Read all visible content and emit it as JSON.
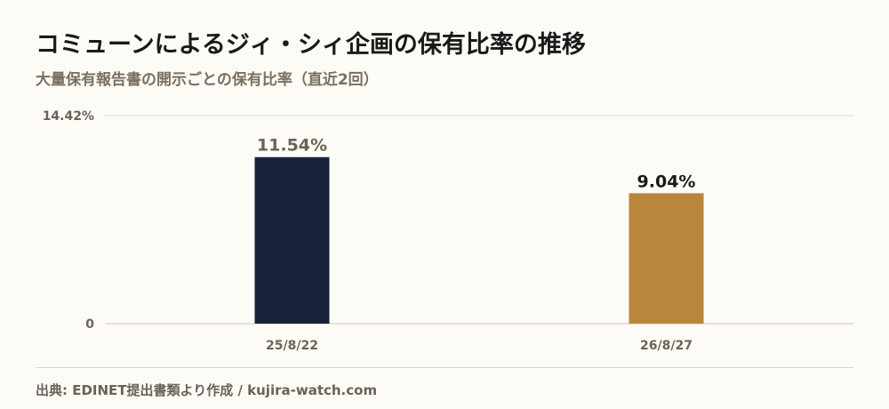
{
  "header": {
    "title": "コミューンによるジィ・シィ企画の保有比率の推移",
    "subtitle": "大量保有報告書の開示ごとの保有比率（直近2回）"
  },
  "chart_data": {
    "type": "bar",
    "categories": [
      "25/8/22",
      "26/8/27"
    ],
    "values": [
      11.54,
      9.04
    ],
    "data_labels": [
      "11.54%",
      "9.04%"
    ],
    "bar_colors": [
      "#18233b",
      "#b8863c"
    ],
    "data_label_colors": [
      "#6b6258",
      "#1a1a1a"
    ],
    "ylim": [
      0,
      14.42
    ],
    "y_ticks": [
      {
        "value": 0,
        "label": "0"
      },
      {
        "value": 14.42,
        "label": "14.42%"
      }
    ],
    "grid": true,
    "legend": "none"
  },
  "footer": {
    "source": "出典: EDINET提出書類より作成 / kujira-watch.com"
  }
}
